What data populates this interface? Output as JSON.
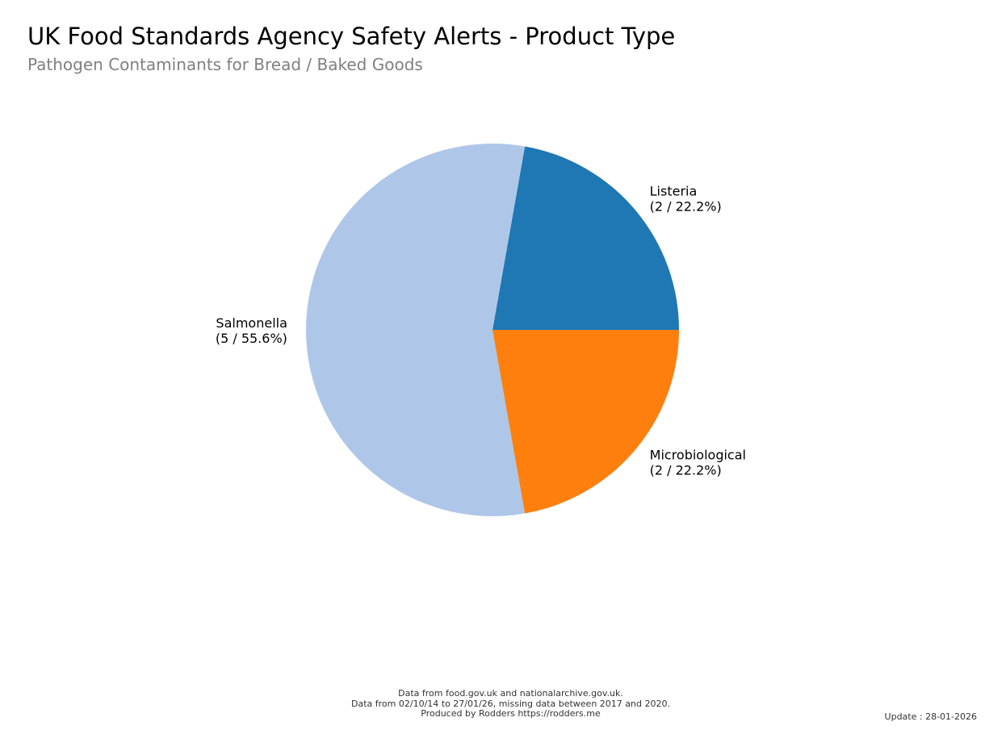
{
  "header": {
    "title": "UK Food Standards Agency Safety Alerts - Product Type",
    "subtitle": "Pathogen Contaminants for Bread / Baked Goods"
  },
  "footer": {
    "line1": "Data from food.gov.uk and nationalarchive.gov.uk.",
    "line2": "Data from 02/10/14 to 27/01/26, missing data between 2017 and 2020.",
    "line3": "Produced by Rodders https://rodders.me",
    "update": "Update : 28-01-2026"
  },
  "chart_data": {
    "type": "pie",
    "title": "UK Food Standards Agency Safety Alerts - Product Type",
    "subtitle": "Pathogen Contaminants for Bread / Baked Goods",
    "slices": [
      {
        "label": "Listeria",
        "value": 2,
        "percent": 22.2,
        "detail": "(2 / 22.2%)",
        "color": "#1f77b4"
      },
      {
        "label": "Salmonella",
        "value": 5,
        "percent": 55.6,
        "detail": "(5 / 55.6%)",
        "color": "#aec7e8"
      },
      {
        "label": "Microbiological",
        "value": 2,
        "percent": 22.2,
        "detail": "(2 / 22.2%)",
        "color": "#ff7f0e"
      }
    ],
    "start_angle": "3 o'clock",
    "direction": "counterclockwise",
    "legend": "none"
  }
}
